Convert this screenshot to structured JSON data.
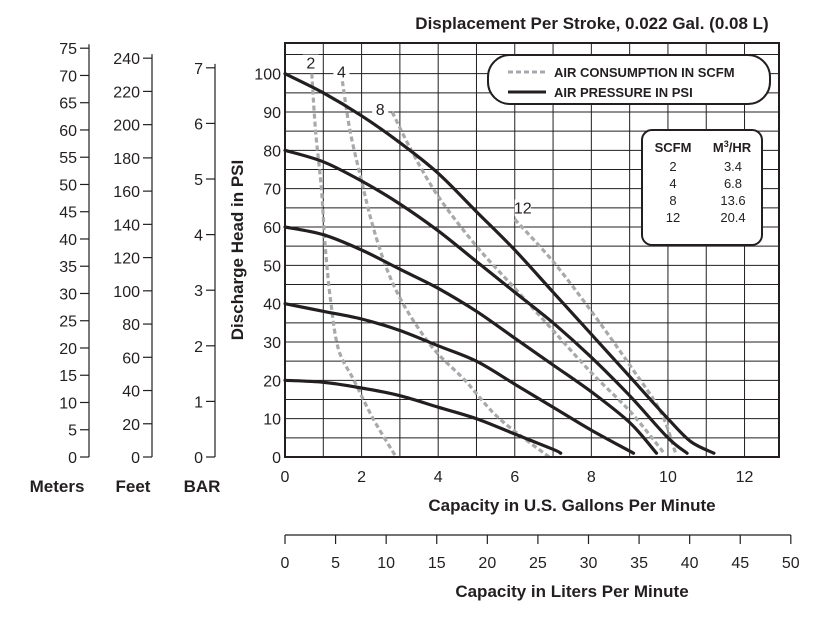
{
  "chart_data": {
    "type": "line",
    "title": "Displacement Per Stroke, 0.022 Gal. (0.08 L)",
    "xlabel": "Capacity in U.S. Gallons Per Minute",
    "ylabel": "Discharge Head in PSI",
    "xlim": [
      0,
      12.9
    ],
    "ylim": [
      0,
      108
    ],
    "x_ticks": [
      0,
      2,
      4,
      6,
      8,
      10,
      12
    ],
    "y_ticks": [
      0,
      10,
      20,
      30,
      40,
      50,
      60,
      70,
      80,
      90,
      100
    ],
    "grid": true,
    "legend": {
      "position": "top-right",
      "entries": [
        {
          "label": "AIR CONSUMPTION IN SCFM",
          "style": "dashed",
          "color": "#a7a9ac"
        },
        {
          "label": "AIR PRESSURE IN PSI",
          "style": "solid",
          "color": "#231f20"
        }
      ]
    },
    "pressure_series": [
      {
        "name": "100 PSI",
        "points": [
          [
            0,
            100
          ],
          [
            1,
            95
          ],
          [
            2,
            89
          ],
          [
            3,
            82
          ],
          [
            4,
            74
          ],
          [
            5,
            64
          ],
          [
            6,
            54
          ],
          [
            7,
            43
          ],
          [
            8,
            32
          ],
          [
            9,
            21
          ],
          [
            10,
            10
          ],
          [
            10.6,
            4
          ],
          [
            11.2,
            1
          ]
        ]
      },
      {
        "name": "80 PSI",
        "points": [
          [
            0,
            80
          ],
          [
            1,
            77
          ],
          [
            2,
            72
          ],
          [
            3,
            66
          ],
          [
            4,
            59
          ],
          [
            5,
            51
          ],
          [
            6,
            43
          ],
          [
            7,
            35
          ],
          [
            8,
            26
          ],
          [
            9,
            16
          ],
          [
            10,
            5
          ],
          [
            10.5,
            1
          ]
        ]
      },
      {
        "name": "60 PSI",
        "points": [
          [
            0,
            60
          ],
          [
            1,
            58
          ],
          [
            2,
            54
          ],
          [
            3,
            49
          ],
          [
            4,
            44
          ],
          [
            5,
            38
          ],
          [
            6,
            31
          ],
          [
            7,
            24
          ],
          [
            8,
            17
          ],
          [
            9,
            9
          ],
          [
            9.7,
            1
          ]
        ]
      },
      {
        "name": "40 PSI",
        "points": [
          [
            0,
            40
          ],
          [
            1,
            38
          ],
          [
            2,
            36
          ],
          [
            3,
            33
          ],
          [
            4,
            29
          ],
          [
            5,
            25
          ],
          [
            6,
            19
          ],
          [
            7,
            13
          ],
          [
            8,
            7
          ],
          [
            9.1,
            1
          ]
        ]
      },
      {
        "name": "20 PSI",
        "points": [
          [
            0,
            20
          ],
          [
            1,
            19.5
          ],
          [
            2,
            18
          ],
          [
            3,
            16
          ],
          [
            4,
            13
          ],
          [
            5,
            10
          ],
          [
            6,
            6
          ],
          [
            7,
            2
          ],
          [
            7.2,
            1
          ]
        ]
      }
    ],
    "scfm_series": [
      {
        "name": "2",
        "points": [
          [
            0.7,
            100
          ],
          [
            0.8,
            85
          ],
          [
            0.95,
            70
          ],
          [
            1.05,
            55
          ],
          [
            1.2,
            40
          ],
          [
            1.4,
            28
          ],
          [
            1.8,
            20
          ],
          [
            2.3,
            10
          ],
          [
            2.9,
            0
          ]
        ]
      },
      {
        "name": "4",
        "points": [
          [
            1.5,
            98
          ],
          [
            1.7,
            85
          ],
          [
            2.0,
            72
          ],
          [
            2.3,
            60
          ],
          [
            2.7,
            48
          ],
          [
            3.2,
            38
          ],
          [
            3.9,
            28
          ],
          [
            4.7,
            20
          ],
          [
            5.6,
            10
          ],
          [
            6.9,
            0
          ]
        ]
      },
      {
        "name": "8",
        "points": [
          [
            2.8,
            90
          ],
          [
            3.3,
            80
          ],
          [
            4.0,
            68
          ],
          [
            5.0,
            55
          ],
          [
            6.0,
            44
          ],
          [
            7.0,
            33
          ],
          [
            8.0,
            22
          ],
          [
            9.0,
            12
          ],
          [
            9.9,
            1
          ]
        ]
      },
      {
        "name": "12",
        "points": [
          [
            6.0,
            62
          ],
          [
            7.0,
            51
          ],
          [
            8.0,
            38
          ],
          [
            9.0,
            24
          ],
          [
            9.8,
            12
          ],
          [
            10.2,
            1
          ]
        ]
      }
    ],
    "scfm_curve_labels": [
      "2",
      "4",
      "8",
      "12"
    ],
    "left_axes": {
      "meters": {
        "label": "Meters",
        "ticks": [
          "0",
          "5",
          "10",
          "15",
          "20",
          "25",
          "30",
          "35",
          "40",
          "45",
          "50",
          "55",
          "60",
          "65",
          "70",
          "75"
        ]
      },
      "feet": {
        "label": "Feet",
        "ticks": [
          "0",
          "20",
          "40",
          "60",
          "80",
          "100",
          "120",
          "140",
          "160",
          "180",
          "200",
          "220",
          "240"
        ]
      },
      "bar": {
        "label": "BAR",
        "ticks": [
          "0",
          "1",
          "2",
          "3",
          "4",
          "5",
          "6",
          "7"
        ]
      }
    },
    "liters_axis": {
      "label": "Capacity in Liters Per Minute",
      "ticks": [
        "0",
        "5",
        "10",
        "15",
        "20",
        "25",
        "30",
        "35",
        "40",
        "45",
        "50"
      ]
    },
    "conversion_table": {
      "headers": [
        "SCFM",
        "M3/HR"
      ],
      "rows": [
        [
          "2",
          "3.4"
        ],
        [
          "4",
          "6.8"
        ],
        [
          "8",
          "13.6"
        ],
        [
          "12",
          "20.4"
        ]
      ]
    }
  }
}
